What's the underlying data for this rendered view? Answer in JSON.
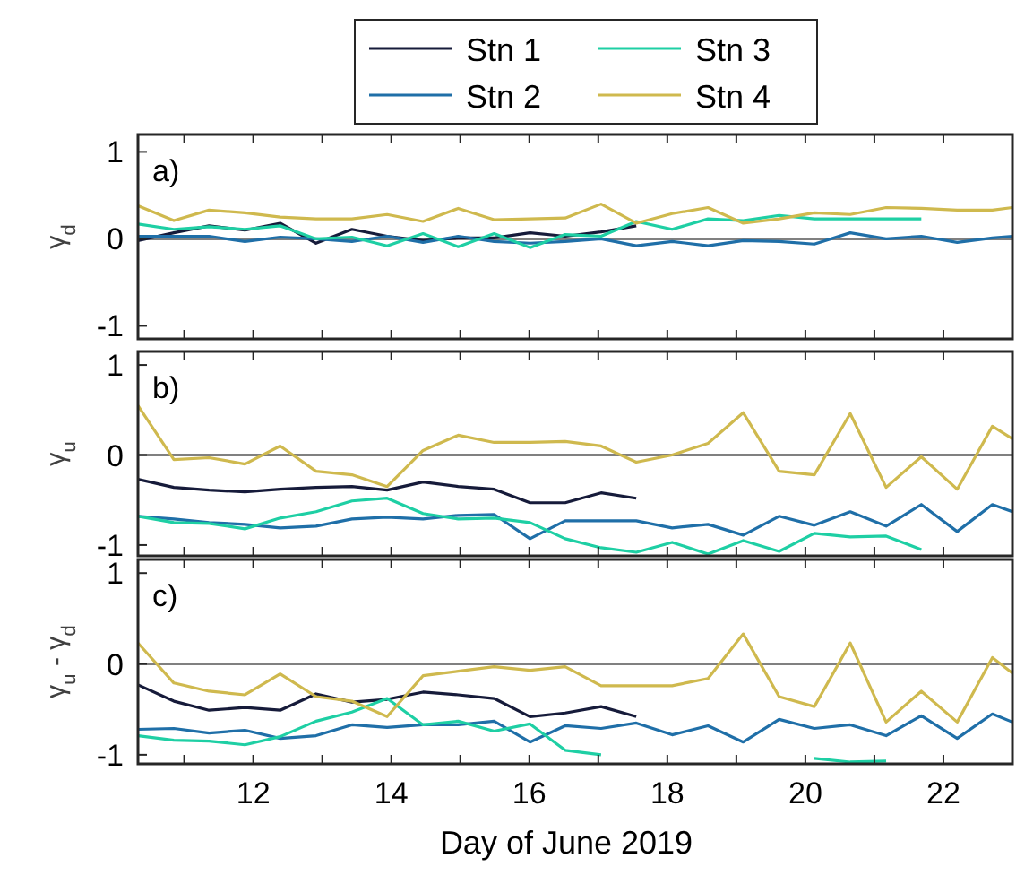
{
  "chart_data": [
    {
      "type": "line",
      "ylabel": "γ$_{d}$",
      "annotations": [
        "a)"
      ],
      "legend": "top",
      "tick_labels": "y",
      "grid": false,
      "xlim": [
        10.33,
        23
      ],
      "ylim": [
        -1.15,
        1.2
      ],
      "yticks": [
        -1,
        0,
        1
      ],
      "xticks": [
        {
          "value": 11,
          "label": null
        },
        {
          "value": 12,
          "label": null
        },
        {
          "value": 13,
          "label": null
        },
        {
          "value": 14,
          "label": null
        },
        {
          "value": 15,
          "label": null
        },
        {
          "value": 16,
          "label": null
        },
        {
          "value": 17,
          "label": null
        },
        {
          "value": 18,
          "label": null
        },
        {
          "value": 19,
          "label": null
        },
        {
          "value": 20,
          "label": null
        },
        {
          "value": 21,
          "label": null
        },
        {
          "value": 22,
          "label": null
        }
      ],
      "ref_lines": [
        {
          "axis": "y",
          "value": 0,
          "color": "#808080"
        }
      ],
      "x": [
        10.33,
        10.85,
        11.36,
        11.88,
        12.39,
        12.91,
        13.43,
        13.94,
        14.46,
        14.97,
        15.49,
        16.01,
        16.52,
        17.04,
        17.55,
        18.07,
        18.59,
        19.1,
        19.62,
        20.13,
        20.65,
        21.17,
        21.68,
        22.2,
        22.71,
        23
      ],
      "series": [
        {
          "name": "Stn 1",
          "color": "#161b3a",
          "values": [
            -0.02,
            0.07,
            0.15,
            0.1,
            0.18,
            -0.05,
            0.11,
            0.03,
            -0.02,
            0.01,
            0.01,
            0.07,
            0.03,
            0.08,
            0.15,
            null,
            null,
            null,
            null,
            null,
            null,
            null,
            null,
            null,
            null,
            null
          ]
        },
        {
          "name": "Stn 2",
          "color": "#1f6fa8",
          "values": [
            0.03,
            0.03,
            0.03,
            -0.03,
            0.02,
            0,
            -0.03,
            0.03,
            -0.04,
            0.03,
            -0.03,
            -0.05,
            -0.03,
            0,
            -0.08,
            -0.03,
            -0.08,
            -0.02,
            -0.03,
            -0.06,
            0.07,
            0,
            0.03,
            -0.04,
            0.01,
            0.03
          ]
        },
        {
          "name": "Stn 3",
          "color": "#1ecfa4",
          "values": [
            0.17,
            0.11,
            0.14,
            0.11,
            0.15,
            0,
            0.02,
            -0.08,
            0.06,
            -0.09,
            0.06,
            -0.1,
            0.05,
            0.03,
            0.2,
            0.11,
            0.23,
            0.21,
            0.27,
            0.23,
            0.23,
            0.23,
            0.23,
            null,
            null,
            null
          ]
        },
        {
          "name": "Stn 4",
          "color": "#cfb94e",
          "values": [
            0.38,
            0.21,
            0.33,
            0.3,
            0.25,
            0.23,
            0.23,
            0.28,
            0.2,
            0.35,
            0.22,
            0.23,
            0.24,
            0.4,
            0.18,
            0.29,
            0.36,
            0.18,
            0.23,
            0.3,
            0.28,
            0.36,
            0.35,
            0.33,
            0.33,
            0.36
          ]
        }
      ]
    },
    {
      "type": "line",
      "ylabel": "γ$_{u}$",
      "annotations": [
        "b)"
      ],
      "tick_labels": "y",
      "grid": false,
      "xlim": [
        10.33,
        23
      ],
      "ylim": [
        -1.12,
        1.15
      ],
      "yticks": [
        -1,
        0,
        1
      ],
      "xticks": [
        {
          "value": 11,
          "label": null
        },
        {
          "value": 12,
          "label": null
        },
        {
          "value": 13,
          "label": null
        },
        {
          "value": 14,
          "label": null
        },
        {
          "value": 15,
          "label": null
        },
        {
          "value": 16,
          "label": null
        },
        {
          "value": 17,
          "label": null
        },
        {
          "value": 18,
          "label": null
        },
        {
          "value": 19,
          "label": null
        },
        {
          "value": 20,
          "label": null
        },
        {
          "value": 21,
          "label": null
        },
        {
          "value": 22,
          "label": null
        }
      ],
      "ref_lines": [
        {
          "axis": "y",
          "value": 0,
          "color": "#808080"
        }
      ],
      "x": [
        10.33,
        10.85,
        11.36,
        11.88,
        12.39,
        12.91,
        13.43,
        13.94,
        14.46,
        14.97,
        15.49,
        16.01,
        16.52,
        17.04,
        17.55,
        18.07,
        18.59,
        19.1,
        19.62,
        20.13,
        20.65,
        21.17,
        21.68,
        22.2,
        22.71,
        23
      ],
      "series": [
        {
          "color": "#161b3a",
          "values": [
            -0.27,
            -0.36,
            -0.39,
            -0.41,
            -0.38,
            -0.36,
            -0.35,
            -0.39,
            -0.3,
            -0.35,
            -0.38,
            -0.53,
            -0.53,
            -0.42,
            -0.48,
            null,
            null,
            null,
            null,
            null,
            null,
            null,
            null,
            null,
            null,
            null
          ]
        },
        {
          "color": "#1f6fa8",
          "values": [
            -0.68,
            -0.71,
            -0.75,
            -0.77,
            -0.81,
            -0.79,
            -0.71,
            -0.69,
            -0.71,
            -0.67,
            -0.66,
            -0.93,
            -0.73,
            -0.73,
            -0.73,
            -0.81,
            -0.77,
            -0.89,
            -0.68,
            -0.78,
            -0.63,
            -0.79,
            -0.55,
            -0.85,
            -0.55,
            -0.63
          ]
        },
        {
          "color": "#1ecfa4",
          "values": [
            -0.68,
            -0.75,
            -0.76,
            -0.82,
            -0.7,
            -0.63,
            -0.51,
            -0.48,
            -0.65,
            -0.71,
            -0.7,
            -0.75,
            -0.93,
            -1.03,
            -1.08,
            -0.97,
            -1.1,
            -0.95,
            -1.07,
            -0.87,
            -0.91,
            -0.9,
            -1.05,
            null,
            null,
            null
          ]
        },
        {
          "color": "#cfb94e",
          "values": [
            0.55,
            -0.05,
            -0.03,
            -0.1,
            0.1,
            -0.18,
            -0.22,
            -0.35,
            0.05,
            0.22,
            0.14,
            0.14,
            0.15,
            0.1,
            -0.08,
            0,
            0.13,
            0.47,
            -0.18,
            -0.22,
            0.46,
            -0.36,
            -0.02,
            -0.38,
            0.32,
            0.18
          ]
        }
      ]
    },
    {
      "type": "line",
      "ylabel": "γ$_{u}$ - γ$_{d}$",
      "xlabel": "Day of June 2019",
      "annotations": [
        "c)"
      ],
      "grid": false,
      "xlim": [
        10.33,
        23
      ],
      "ylim": [
        -1.1,
        1.15
      ],
      "yticks": [
        -1,
        0,
        1
      ],
      "xticks": [
        {
          "value": 11,
          "label": null
        },
        12,
        {
          "value": 13,
          "label": null
        },
        14,
        {
          "value": 15,
          "label": null
        },
        16,
        {
          "value": 17,
          "label": null
        },
        18,
        {
          "value": 19,
          "label": null
        },
        20,
        {
          "value": 21,
          "label": null
        },
        22
      ],
      "ref_lines": [
        {
          "axis": "y",
          "value": 0,
          "color": "#808080"
        }
      ],
      "x": [
        10.33,
        10.85,
        11.36,
        11.88,
        12.39,
        12.91,
        13.43,
        13.94,
        14.46,
        14.97,
        15.49,
        16.01,
        16.52,
        17.04,
        17.55,
        18.07,
        18.59,
        19.1,
        19.62,
        20.13,
        20.65,
        21.17,
        21.68,
        22.2,
        22.71,
        23
      ],
      "series": [
        {
          "color": "#161b3a",
          "values": [
            -0.23,
            -0.41,
            -0.51,
            -0.48,
            -0.51,
            -0.33,
            -0.42,
            -0.39,
            -0.31,
            -0.34,
            -0.38,
            -0.58,
            -0.54,
            -0.47,
            -0.58,
            null,
            null,
            null,
            null,
            null,
            null,
            null,
            null,
            null,
            null,
            null
          ]
        },
        {
          "color": "#1f6fa8",
          "values": [
            -0.72,
            -0.71,
            -0.76,
            -0.73,
            -0.82,
            -0.79,
            -0.67,
            -0.7,
            -0.67,
            -0.67,
            -0.63,
            -0.86,
            -0.68,
            -0.71,
            -0.65,
            -0.78,
            -0.68,
            -0.86,
            -0.61,
            -0.71,
            -0.67,
            -0.79,
            -0.57,
            -0.82,
            -0.55,
            -0.64
          ]
        },
        {
          "color": "#1ecfa4",
          "values": [
            -0.79,
            -0.84,
            -0.85,
            -0.89,
            -0.8,
            -0.63,
            -0.53,
            -0.38,
            -0.67,
            -0.63,
            -0.74,
            -0.66,
            -0.95,
            -1.0,
            null,
            null,
            null,
            null,
            null,
            -1.04,
            -1.08,
            -1.07,
            null,
            null,
            null,
            null
          ]
        },
        {
          "color": "#cfb94e",
          "values": [
            0.23,
            -0.21,
            -0.3,
            -0.34,
            -0.11,
            -0.36,
            -0.41,
            -0.58,
            -0.13,
            -0.08,
            -0.03,
            -0.07,
            -0.03,
            -0.24,
            -0.24,
            -0.24,
            -0.16,
            0.33,
            -0.36,
            -0.47,
            0.23,
            -0.64,
            -0.3,
            -0.64,
            0.07,
            -0.1
          ]
        }
      ]
    }
  ]
}
